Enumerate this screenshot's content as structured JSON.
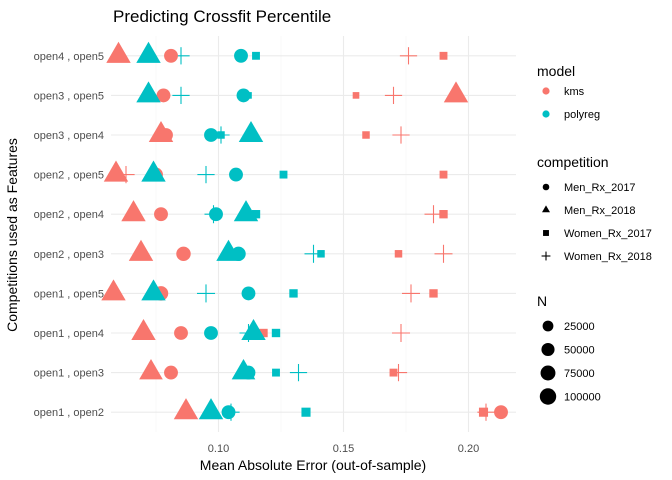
{
  "chart_data": {
    "type": "scatter",
    "title": "Predicting Crossfit Percentile",
    "xlabel": "Mean Absolute Error (out-of-sample)",
    "ylabel": "Competitions used as Features",
    "xlim": [
      0.057,
      0.219
    ],
    "x_ticks": [
      0.1,
      0.15,
      0.2
    ],
    "x_tick_labels": [
      "0.10",
      "0.15",
      "0.20"
    ],
    "categories": [
      "open1 , open2",
      "open1 , open3",
      "open1 , open4",
      "open1 , open5",
      "open2 , open3",
      "open2 , open4",
      "open2 , open5",
      "open3 , open4",
      "open3 , open5",
      "open4 , open5"
    ],
    "grid": true,
    "legend_position": "right",
    "model_legend": {
      "title": "model",
      "entries": [
        {
          "label": "kms",
          "color": "#F8766D"
        },
        {
          "label": "polyreg",
          "color": "#00BFC4"
        }
      ]
    },
    "competition_legend": {
      "title": "competition",
      "entries": [
        {
          "label": "Men_Rx_2017",
          "shape": "circle"
        },
        {
          "label": "Men_Rx_2018",
          "shape": "triangle"
        },
        {
          "label": "Women_Rx_2017",
          "shape": "square"
        },
        {
          "label": "Women_Rx_2018",
          "shape": "plus"
        }
      ]
    },
    "size_legend": {
      "title": "N",
      "entries": [
        {
          "label": "25000",
          "value": 25000
        },
        {
          "label": "50000",
          "value": 50000
        },
        {
          "label": "75000",
          "value": 75000
        },
        {
          "label": "100000",
          "value": 100000
        }
      ]
    },
    "points": [
      {
        "category": "open1 , open2",
        "model": "kms",
        "competition": "Men_Rx_2017",
        "x": 0.213,
        "n": 40000
      },
      {
        "category": "open1 , open2",
        "model": "kms",
        "competition": "Men_Rx_2018",
        "x": 0.087,
        "n": 120000
      },
      {
        "category": "open1 , open2",
        "model": "kms",
        "competition": "Women_Rx_2017",
        "x": 0.206,
        "n": 20000
      },
      {
        "category": "open1 , open2",
        "model": "kms",
        "competition": "Women_Rx_2018",
        "x": 0.207,
        "n": 35000
      },
      {
        "category": "open1 , open2",
        "model": "polyreg",
        "competition": "Men_Rx_2017",
        "x": 0.104,
        "n": 40000
      },
      {
        "category": "open1 , open2",
        "model": "polyreg",
        "competition": "Men_Rx_2018",
        "x": 0.097,
        "n": 120000
      },
      {
        "category": "open1 , open2",
        "model": "polyreg",
        "competition": "Women_Rx_2017",
        "x": 0.135,
        "n": 20000
      },
      {
        "category": "open1 , open2",
        "model": "polyreg",
        "competition": "Women_Rx_2018",
        "x": 0.105,
        "n": 35000
      },
      {
        "category": "open1 , open3",
        "model": "kms",
        "competition": "Men_Rx_2017",
        "x": 0.081,
        "n": 40000
      },
      {
        "category": "open1 , open3",
        "model": "kms",
        "competition": "Men_Rx_2018",
        "x": 0.073,
        "n": 110000
      },
      {
        "category": "open1 , open3",
        "model": "kms",
        "competition": "Women_Rx_2017",
        "x": 0.17,
        "n": 12000
      },
      {
        "category": "open1 , open3",
        "model": "kms",
        "competition": "Women_Rx_2018",
        "x": 0.172,
        "n": 35000
      },
      {
        "category": "open1 , open3",
        "model": "polyreg",
        "competition": "Men_Rx_2017",
        "x": 0.112,
        "n": 40000
      },
      {
        "category": "open1 , open3",
        "model": "polyreg",
        "competition": "Men_Rx_2018",
        "x": 0.11,
        "n": 110000
      },
      {
        "category": "open1 , open3",
        "model": "polyreg",
        "competition": "Women_Rx_2017",
        "x": 0.123,
        "n": 12000
      },
      {
        "category": "open1 , open3",
        "model": "polyreg",
        "competition": "Women_Rx_2018",
        "x": 0.132,
        "n": 35000
      },
      {
        "category": "open1 , open4",
        "model": "kms",
        "competition": "Men_Rx_2017",
        "x": 0.085,
        "n": 40000
      },
      {
        "category": "open1 , open4",
        "model": "kms",
        "competition": "Men_Rx_2018",
        "x": 0.07,
        "n": 120000
      },
      {
        "category": "open1 , open4",
        "model": "kms",
        "competition": "Women_Rx_2017",
        "x": 0.118,
        "n": 15000
      },
      {
        "category": "open1 , open4",
        "model": "kms",
        "competition": "Women_Rx_2018",
        "x": 0.173,
        "n": 40000
      },
      {
        "category": "open1 , open4",
        "model": "polyreg",
        "competition": "Men_Rx_2017",
        "x": 0.097,
        "n": 40000
      },
      {
        "category": "open1 , open4",
        "model": "polyreg",
        "competition": "Men_Rx_2018",
        "x": 0.114,
        "n": 120000
      },
      {
        "category": "open1 , open4",
        "model": "polyreg",
        "competition": "Women_Rx_2017",
        "x": 0.123,
        "n": 15000
      },
      {
        "category": "open1 , open4",
        "model": "polyreg",
        "competition": "Women_Rx_2018",
        "x": 0.112,
        "n": 40000
      },
      {
        "category": "open1 , open5",
        "model": "kms",
        "competition": "Men_Rx_2017",
        "x": 0.077,
        "n": 45000
      },
      {
        "category": "open1 , open5",
        "model": "kms",
        "competition": "Men_Rx_2018",
        "x": 0.058,
        "n": 120000
      },
      {
        "category": "open1 , open5",
        "model": "kms",
        "competition": "Women_Rx_2017",
        "x": 0.186,
        "n": 15000
      },
      {
        "category": "open1 , open5",
        "model": "kms",
        "competition": "Women_Rx_2018",
        "x": 0.177,
        "n": 40000
      },
      {
        "category": "open1 , open5",
        "model": "polyreg",
        "competition": "Men_Rx_2017",
        "x": 0.112,
        "n": 40000
      },
      {
        "category": "open1 , open5",
        "model": "polyreg",
        "competition": "Men_Rx_2018",
        "x": 0.074,
        "n": 120000
      },
      {
        "category": "open1 , open5",
        "model": "polyreg",
        "competition": "Women_Rx_2017",
        "x": 0.13,
        "n": 15000
      },
      {
        "category": "open1 , open5",
        "model": "polyreg",
        "competition": "Women_Rx_2018",
        "x": 0.095,
        "n": 40000
      },
      {
        "category": "open2 , open3",
        "model": "kms",
        "competition": "Men_Rx_2017",
        "x": 0.086,
        "n": 45000
      },
      {
        "category": "open2 , open3",
        "model": "kms",
        "competition": "Men_Rx_2018",
        "x": 0.069,
        "n": 120000
      },
      {
        "category": "open2 , open3",
        "model": "kms",
        "competition": "Women_Rx_2017",
        "x": 0.172,
        "n": 10000
      },
      {
        "category": "open2 , open3",
        "model": "kms",
        "competition": "Women_Rx_2018",
        "x": 0.19,
        "n": 40000
      },
      {
        "category": "open2 , open3",
        "model": "polyreg",
        "competition": "Men_Rx_2017",
        "x": 0.108,
        "n": 45000
      },
      {
        "category": "open2 , open3",
        "model": "polyreg",
        "competition": "Men_Rx_2018",
        "x": 0.104,
        "n": 120000
      },
      {
        "category": "open2 , open3",
        "model": "polyreg",
        "competition": "Women_Rx_2017",
        "x": 0.141,
        "n": 10000
      },
      {
        "category": "open2 , open3",
        "model": "polyreg",
        "competition": "Women_Rx_2018",
        "x": 0.138,
        "n": 40000
      },
      {
        "category": "open2 , open4",
        "model": "kms",
        "competition": "Men_Rx_2017",
        "x": 0.077,
        "n": 40000
      },
      {
        "category": "open2 , open4",
        "model": "kms",
        "competition": "Men_Rx_2018",
        "x": 0.066,
        "n": 120000
      },
      {
        "category": "open2 , open4",
        "model": "kms",
        "competition": "Women_Rx_2017",
        "x": 0.19,
        "n": 15000
      },
      {
        "category": "open2 , open4",
        "model": "kms",
        "competition": "Women_Rx_2018",
        "x": 0.186,
        "n": 40000
      },
      {
        "category": "open2 , open4",
        "model": "polyreg",
        "competition": "Men_Rx_2017",
        "x": 0.099,
        "n": 40000
      },
      {
        "category": "open2 , open4",
        "model": "polyreg",
        "competition": "Men_Rx_2018",
        "x": 0.111,
        "n": 120000
      },
      {
        "category": "open2 , open4",
        "model": "polyreg",
        "competition": "Women_Rx_2017",
        "x": 0.115,
        "n": 15000
      },
      {
        "category": "open2 , open4",
        "model": "polyreg",
        "competition": "Women_Rx_2018",
        "x": 0.098,
        "n": 40000
      },
      {
        "category": "open2 , open5",
        "model": "kms",
        "competition": "Men_Rx_2017",
        "x": 0.075,
        "n": 40000
      },
      {
        "category": "open2 , open5",
        "model": "kms",
        "competition": "Men_Rx_2018",
        "x": 0.059,
        "n": 120000
      },
      {
        "category": "open2 , open5",
        "model": "kms",
        "competition": "Women_Rx_2017",
        "x": 0.19,
        "n": 12000
      },
      {
        "category": "open2 , open5",
        "model": "kms",
        "competition": "Women_Rx_2018",
        "x": 0.063,
        "n": 35000
      },
      {
        "category": "open2 , open5",
        "model": "polyreg",
        "competition": "Men_Rx_2017",
        "x": 0.107,
        "n": 40000
      },
      {
        "category": "open2 , open5",
        "model": "polyreg",
        "competition": "Men_Rx_2018",
        "x": 0.074,
        "n": 120000
      },
      {
        "category": "open2 , open5",
        "model": "polyreg",
        "competition": "Women_Rx_2017",
        "x": 0.126,
        "n": 12000
      },
      {
        "category": "open2 , open5",
        "model": "polyreg",
        "competition": "Women_Rx_2018",
        "x": 0.095,
        "n": 35000
      },
      {
        "category": "open3 , open4",
        "model": "kms",
        "competition": "Men_Rx_2017",
        "x": 0.079,
        "n": 40000
      },
      {
        "category": "open3 , open4",
        "model": "kms",
        "competition": "Men_Rx_2018",
        "x": 0.077,
        "n": 120000
      },
      {
        "category": "open3 , open4",
        "model": "kms",
        "competition": "Women_Rx_2017",
        "x": 0.159,
        "n": 10000
      },
      {
        "category": "open3 , open4",
        "model": "kms",
        "competition": "Women_Rx_2018",
        "x": 0.173,
        "n": 35000
      },
      {
        "category": "open3 , open4",
        "model": "polyreg",
        "competition": "Men_Rx_2017",
        "x": 0.097,
        "n": 40000
      },
      {
        "category": "open3 , open4",
        "model": "polyreg",
        "competition": "Men_Rx_2018",
        "x": 0.113,
        "n": 120000
      },
      {
        "category": "open3 , open4",
        "model": "polyreg",
        "competition": "Women_Rx_2017",
        "x": 0.101,
        "n": 10000
      },
      {
        "category": "open3 , open4",
        "model": "polyreg",
        "competition": "Women_Rx_2018",
        "x": 0.101,
        "n": 35000
      },
      {
        "category": "open3 , open5",
        "model": "kms",
        "competition": "Men_Rx_2017",
        "x": 0.078,
        "n": 40000
      },
      {
        "category": "open3 , open5",
        "model": "kms",
        "competition": "Men_Rx_2018",
        "x": 0.195,
        "n": 120000
      },
      {
        "category": "open3 , open5",
        "model": "kms",
        "competition": "Women_Rx_2017",
        "x": 0.155,
        "n": 6000
      },
      {
        "category": "open3 , open5",
        "model": "kms",
        "competition": "Women_Rx_2018",
        "x": 0.17,
        "n": 35000
      },
      {
        "category": "open3 , open5",
        "model": "polyreg",
        "competition": "Men_Rx_2017",
        "x": 0.11,
        "n": 40000
      },
      {
        "category": "open3 , open5",
        "model": "polyreg",
        "competition": "Men_Rx_2018",
        "x": 0.072,
        "n": 120000
      },
      {
        "category": "open3 , open5",
        "model": "polyreg",
        "competition": "Women_Rx_2017",
        "x": 0.112,
        "n": 6000
      },
      {
        "category": "open3 , open5",
        "model": "polyreg",
        "competition": "Women_Rx_2018",
        "x": 0.085,
        "n": 35000
      },
      {
        "category": "open4 , open5",
        "model": "kms",
        "competition": "Men_Rx_2017",
        "x": 0.081,
        "n": 40000
      },
      {
        "category": "open4 , open5",
        "model": "kms",
        "competition": "Men_Rx_2018",
        "x": 0.06,
        "n": 120000
      },
      {
        "category": "open4 , open5",
        "model": "kms",
        "competition": "Women_Rx_2017",
        "x": 0.19,
        "n": 12000
      },
      {
        "category": "open4 , open5",
        "model": "kms",
        "competition": "Women_Rx_2018",
        "x": 0.176,
        "n": 35000
      },
      {
        "category": "open4 , open5",
        "model": "polyreg",
        "competition": "Men_Rx_2017",
        "x": 0.109,
        "n": 40000
      },
      {
        "category": "open4 , open5",
        "model": "polyreg",
        "competition": "Men_Rx_2018",
        "x": 0.072,
        "n": 120000
      },
      {
        "category": "open4 , open5",
        "model": "polyreg",
        "competition": "Women_Rx_2017",
        "x": 0.115,
        "n": 12000
      },
      {
        "category": "open4 , open5",
        "model": "polyreg",
        "competition": "Women_Rx_2018",
        "x": 0.085,
        "n": 35000
      }
    ]
  }
}
